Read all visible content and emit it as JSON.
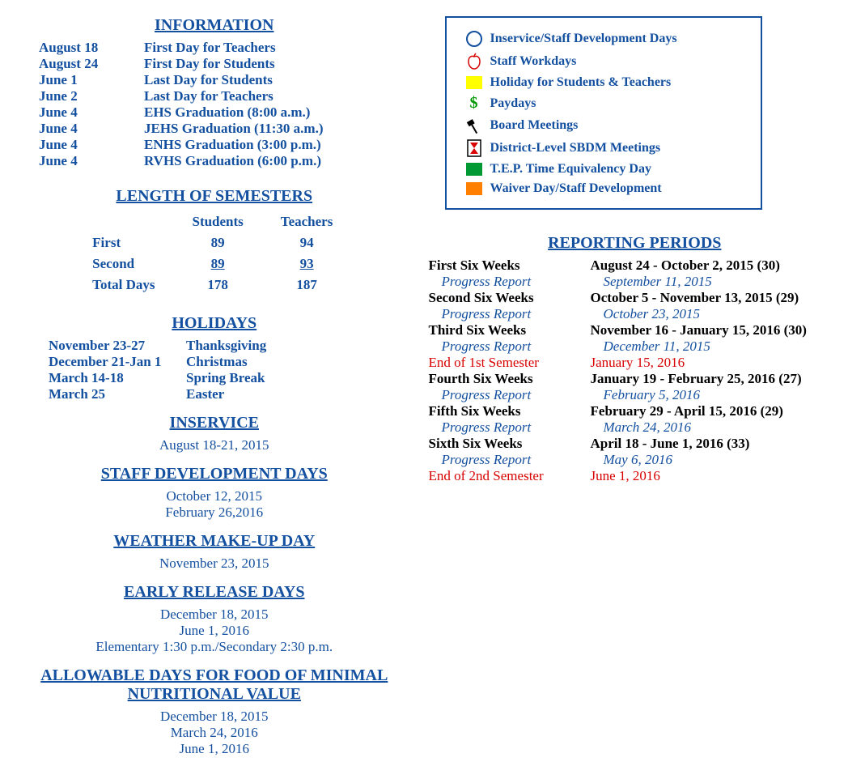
{
  "colors": {
    "blue": "#1450a0",
    "red": "#d80000",
    "black": "#000000",
    "yellow": "#ffff00",
    "green": "#009933",
    "orange": "#ff8000",
    "dollar_green": "#009900"
  },
  "info": {
    "title": "INFORMATION",
    "rows": [
      {
        "date": "August 18",
        "desc": "First Day for Teachers"
      },
      {
        "date": "August 24",
        "desc": "First Day for Students"
      },
      {
        "date": "June 1",
        "desc": "Last Day for Students"
      },
      {
        "date": "June 2",
        "desc": "Last Day for Teachers"
      },
      {
        "date": "June 4",
        "desc": "EHS Graduation (8:00 a.m.)"
      },
      {
        "date": "June 4",
        "desc": "JEHS Graduation (11:30 a.m.)"
      },
      {
        "date": "June 4",
        "desc": "ENHS Graduation (3:00 p.m.)"
      },
      {
        "date": "June 4",
        "desc": "RVHS Graduation (6:00 p.m.)"
      }
    ]
  },
  "semesters": {
    "title": "LENGTH OF SEMESTERS",
    "headers": [
      "",
      "Students",
      "Teachers"
    ],
    "rows": [
      {
        "label": "First",
        "students": "89",
        "teachers": "94",
        "underline": false
      },
      {
        "label": "Second",
        "students": "89",
        "teachers": "93",
        "underline": true
      },
      {
        "label": "Total Days",
        "students": "178",
        "teachers": "187",
        "underline": false
      }
    ]
  },
  "holidays": {
    "title": "HOLIDAYS",
    "rows": [
      {
        "date": "November 23-27",
        "name": "Thanksgiving"
      },
      {
        "date": "December 21-Jan 1",
        "name": "Christmas"
      },
      {
        "date": "March 14-18",
        "name": "Spring Break"
      },
      {
        "date": "March 25",
        "name": "Easter"
      }
    ]
  },
  "inservice": {
    "title": "INSERVICE",
    "lines": [
      "August 18-21, 2015"
    ]
  },
  "staffdev": {
    "title": "STAFF DEVELOPMENT DAYS",
    "lines": [
      "October 12, 2015",
      "February 26,2016"
    ]
  },
  "weather": {
    "title": "WEATHER MAKE-UP DAY",
    "lines": [
      "November 23, 2015"
    ]
  },
  "early": {
    "title": "EARLY RELEASE DAYS",
    "lines": [
      "December 18, 2015",
      "June 1, 2016",
      "Elementary 1:30 p.m./Secondary 2:30 p.m."
    ]
  },
  "food": {
    "title": "ALLOWABLE DAYS FOR FOOD OF MINIMAL NUTRITIONAL VALUE",
    "lines": [
      "December 18, 2015",
      "March 24, 2016",
      "June 1, 2016"
    ]
  },
  "legend": {
    "items": [
      {
        "icon": "circle",
        "label": "Inservice/Staff Development Days"
      },
      {
        "icon": "apple",
        "label": "Staff Workdays"
      },
      {
        "icon": "yellow-box",
        "label": "Holiday for Students & Teachers"
      },
      {
        "icon": "dollar",
        "label": "Paydays"
      },
      {
        "icon": "gavel",
        "label": "Board Meetings"
      },
      {
        "icon": "hourglass",
        "label": "District-Level SBDM Meetings"
      },
      {
        "icon": "green-box",
        "label": "T.E.P. Time Equivalency Day"
      },
      {
        "icon": "orange-box",
        "label": "Waiver Day/Staff Development"
      }
    ]
  },
  "reporting": {
    "title": "REPORTING PERIODS",
    "rows": [
      {
        "label": "First Six Weeks",
        "value": "August 24 - October 2, 2015 (30)",
        "style": "black-bold"
      },
      {
        "label": "Progress Report",
        "value": "September 11, 2015",
        "style": "blue-italic"
      },
      {
        "label": "Second Six Weeks",
        "value": "October 5 - November 13, 2015 (29)",
        "style": "black-bold"
      },
      {
        "label": "Progress Report",
        "value": "October 23, 2015",
        "style": "blue-italic"
      },
      {
        "label": "Third Six Weeks",
        "value": "November 16 - January 15, 2016 (30)",
        "style": "black-bold"
      },
      {
        "label": "Progress Report",
        "value": "December 11, 2015",
        "style": "blue-italic"
      },
      {
        "label": "End of 1st Semester",
        "value": "January 15, 2016",
        "style": "red"
      },
      {
        "label": "Fourth Six Weeks",
        "value": "January 19 - February 25, 2016 (27)",
        "style": "black-bold"
      },
      {
        "label": "Progress Report",
        "value": "February 5, 2016",
        "style": "blue-italic"
      },
      {
        "label": "Fifth Six Weeks",
        "value": "February 29 - April 15, 2016 (29)",
        "style": "black-bold"
      },
      {
        "label": "Progress Report",
        "value": "March 24, 2016",
        "style": "blue-italic"
      },
      {
        "label": "Sixth Six Weeks",
        "value": "April 18 - June 1, 2016 (33)",
        "style": "black-bold"
      },
      {
        "label": "Progress Report",
        "value": "May 6, 2016",
        "style": "blue-italic"
      },
      {
        "label": "End of 2nd Semester",
        "value": "June 1, 2016",
        "style": "red"
      }
    ]
  }
}
